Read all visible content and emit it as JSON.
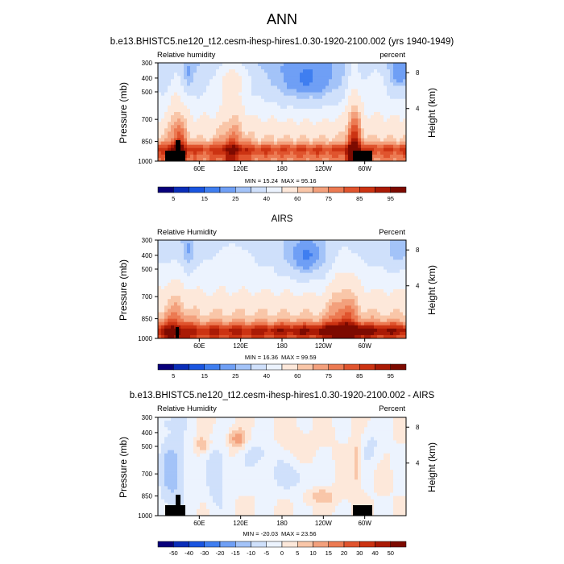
{
  "main_title": "ANN",
  "chart_data": [
    {
      "type": "heatmap",
      "title": "b.e13.BHISTC5.ne120_t12.cesm-ihesp-hires1.0.30-1920-2100.002 (yrs 1940-1949)",
      "left_label": "Relative humidity",
      "right_label": "percent",
      "ylabel": "Pressure (mb)",
      "ylabel_right": "Height (km)",
      "x_ticks": [
        "60E",
        "120E",
        "180",
        "120W",
        "60W"
      ],
      "y_ticks": [
        "300",
        "400",
        "500",
        "700",
        "850",
        "1000"
      ],
      "height_ticks": [
        "8",
        "4"
      ],
      "min_text": "MIN = 15.24",
      "max_text": "MAX = 95.16",
      "colorbar_labels": [
        "5",
        "15",
        "25",
        "40",
        "60",
        "75",
        "85",
        "95"
      ],
      "field": "model"
    },
    {
      "type": "heatmap",
      "title": "AIRS",
      "left_label": "Relative Humidity",
      "right_label": "Percent",
      "ylabel": "Pressure (mb)",
      "ylabel_right": "Height (km)",
      "x_ticks": [
        "60E",
        "120E",
        "180",
        "120W",
        "60W"
      ],
      "y_ticks": [
        "300",
        "400",
        "500",
        "700",
        "850",
        "1000"
      ],
      "height_ticks": [
        "8",
        "4"
      ],
      "min_text": "MIN = 16.36",
      "max_text": "MAX = 99.59",
      "colorbar_labels": [
        "5",
        "15",
        "25",
        "40",
        "60",
        "75",
        "85",
        "95"
      ],
      "field": "obs"
    },
    {
      "type": "heatmap",
      "title": "b.e13.BHISTC5.ne120_t12.cesm-ihesp-hires1.0.30-1920-2100.002 - AIRS",
      "left_label": "Relative Humidity",
      "right_label": "Percent",
      "ylabel": "Pressure (mb)",
      "ylabel_right": "Height (km)",
      "x_ticks": [
        "60E",
        "120E",
        "180",
        "120W",
        "60W"
      ],
      "y_ticks": [
        "300",
        "400",
        "500",
        "700",
        "850",
        "1000"
      ],
      "height_ticks": [
        "8",
        "4"
      ],
      "min_text": "MIN = -20.03",
      "max_text": "MAX = 23.56",
      "colorbar_labels": [
        "-50",
        "-40",
        "-30",
        "-20",
        "-15",
        "-10",
        "-5",
        "0",
        "5",
        "10",
        "15",
        "20",
        "30",
        "40",
        "50"
      ],
      "field": "diff"
    }
  ],
  "colors": {
    "abs_scale": [
      "#08007a",
      "#0a2db8",
      "#1a55e0",
      "#3f7ef0",
      "#6f9ff5",
      "#a3c3f8",
      "#cfe0fb",
      "#ecf3fe",
      "#fde8da",
      "#f9c6a8",
      "#f3a07c",
      "#ec7a52",
      "#e0542e",
      "#cc3312",
      "#aa1a05",
      "#7d0a00"
    ],
    "diff_scale": [
      "#08007a",
      "#0a2db8",
      "#1a55e0",
      "#3f7ef0",
      "#6f9ff5",
      "#a3c3f8",
      "#cfe0fb",
      "#ecf3fe",
      "#fde8da",
      "#f9c6a8",
      "#f3a07c",
      "#ec7a52",
      "#e0542e",
      "#cc3312",
      "#aa1a05",
      "#7d0a00"
    ],
    "terrain": "#000000"
  }
}
